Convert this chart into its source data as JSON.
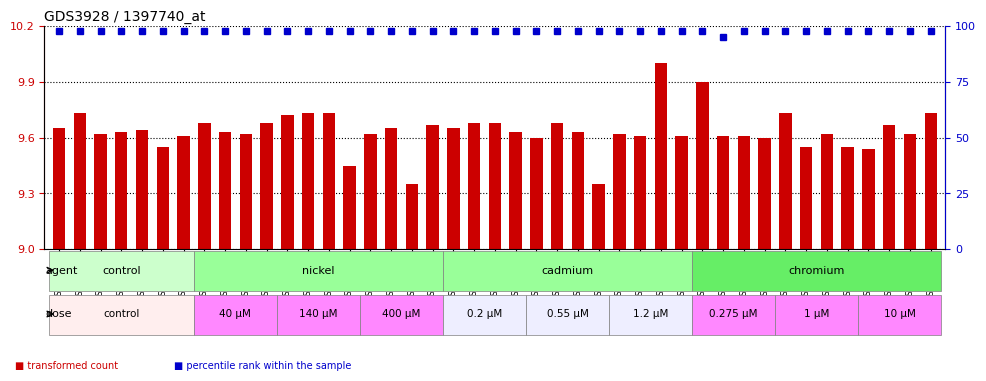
{
  "title": "GDS3928 / 1397740_at",
  "samples": [
    "GSM782280",
    "GSM782281",
    "GSM782291",
    "GSM782302",
    "GSM782303",
    "GSM782313",
    "GSM782314",
    "GSM782282",
    "GSM782293",
    "GSM782304",
    "GSM782315",
    "GSM782283",
    "GSM782294",
    "GSM782305",
    "GSM782316",
    "GSM782284",
    "GSM782295",
    "GSM782306",
    "GSM782317",
    "GSM782288",
    "GSM782299",
    "GSM782310",
    "GSM782321",
    "GSM782289",
    "GSM782300",
    "GSM782311",
    "GSM782322",
    "GSM782290",
    "GSM782301",
    "GSM782312",
    "GSM782323",
    "GSM782285",
    "GSM782296",
    "GSM782307",
    "GSM782318",
    "GSM782286",
    "GSM782297",
    "GSM782308",
    "GSM782319",
    "GSM782287",
    "GSM782298",
    "GSM782309",
    "GSM782320"
  ],
  "bar_values": [
    9.65,
    9.73,
    9.62,
    9.63,
    9.64,
    9.55,
    9.61,
    9.68,
    9.63,
    9.62,
    9.68,
    9.72,
    9.73,
    9.73,
    9.45,
    9.62,
    9.65,
    9.35,
    9.67,
    9.65,
    9.68,
    9.68,
    9.63,
    9.6,
    9.68,
    9.63,
    9.35,
    9.62,
    9.61,
    10.0,
    9.61,
    9.9,
    9.61,
    9.61,
    9.6,
    9.73,
    9.55,
    9.62,
    9.55,
    9.54,
    9.67,
    9.62,
    9.73
  ],
  "percentile_values": [
    98,
    98,
    98,
    98,
    98,
    98,
    98,
    98,
    98,
    98,
    98,
    98,
    98,
    98,
    98,
    98,
    98,
    98,
    98,
    98,
    98,
    98,
    98,
    98,
    98,
    98,
    98,
    98,
    98,
    98,
    98,
    98,
    95,
    98,
    98,
    98,
    98,
    98,
    98,
    98,
    98,
    98,
    98
  ],
  "bar_color": "#cc0000",
  "dot_color": "#0000cc",
  "ylim_left": [
    9.0,
    10.2
  ],
  "ylim_right": [
    0,
    100
  ],
  "yticks_left": [
    9.0,
    9.3,
    9.6,
    9.9,
    10.2
  ],
  "yticks_right": [
    0,
    25,
    50,
    75,
    100
  ],
  "background_color": "#ffffff",
  "grid_color": "#000000",
  "agent_groups": [
    {
      "label": "control",
      "start": 0,
      "end": 6,
      "color": "#ccffcc"
    },
    {
      "label": "nickel",
      "start": 7,
      "end": 18,
      "color": "#99ff99"
    },
    {
      "label": "cadmium",
      "start": 19,
      "end": 30,
      "color": "#99ff99"
    },
    {
      "label": "chromium",
      "start": 31,
      "end": 42,
      "color": "#66ee66"
    }
  ],
  "dose_groups": [
    {
      "label": "control",
      "start": 0,
      "end": 6,
      "color": "#ffeeee"
    },
    {
      "label": "40 μM",
      "start": 7,
      "end": 10,
      "color": "#ff88ff"
    },
    {
      "label": "140 μM",
      "start": 11,
      "end": 14,
      "color": "#ff88ff"
    },
    {
      "label": "400 μM",
      "start": 15,
      "end": 18,
      "color": "#ff88ff"
    },
    {
      "label": "0.2 μM",
      "start": 19,
      "end": 22,
      "color": "#eeeeff"
    },
    {
      "label": "0.55 μM",
      "start": 23,
      "end": 26,
      "color": "#eeeeff"
    },
    {
      "label": "1.2 μM",
      "start": 27,
      "end": 30,
      "color": "#eeeeff"
    },
    {
      "label": "0.275 μM",
      "start": 31,
      "end": 34,
      "color": "#ff88ff"
    },
    {
      "label": "1 μM",
      "start": 35,
      "end": 38,
      "color": "#ff88ff"
    },
    {
      "label": "10 μM",
      "start": 39,
      "end": 42,
      "color": "#ff88ff"
    }
  ],
  "legend_items": [
    {
      "label": "transformed count",
      "color": "#cc0000",
      "marker": "s"
    },
    {
      "label": "percentile rank within the sample",
      "color": "#0000cc",
      "marker": "s"
    }
  ]
}
